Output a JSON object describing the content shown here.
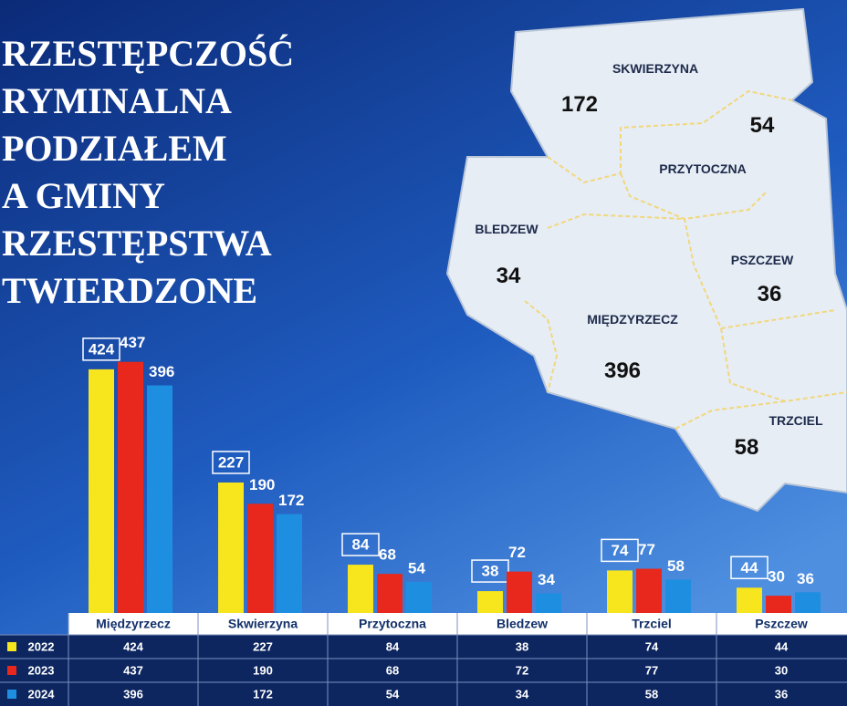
{
  "chart_data": {
    "type": "bar",
    "title_lines": [
      "RZESTĘPCZOŚĆ",
      "RYMINALNA",
      "PODZIAŁEM",
      "A GMINY",
      "RZESTĘPSTWA",
      "TWIERDZONE"
    ],
    "categories": [
      "Międzyrzecz",
      "Skwierzyna",
      "Przytoczna",
      "Bledzew",
      "Trzciel",
      "Pszczew"
    ],
    "series": [
      {
        "name": "2022",
        "color": "#f7e51e",
        "values": [
          424,
          227,
          84,
          38,
          74,
          44
        ]
      },
      {
        "name": "2023",
        "color": "#e8281c",
        "values": [
          437,
          190,
          68,
          72,
          77,
          30
        ]
      },
      {
        "name": "2024",
        "color": "#1e8fe0",
        "values": [
          396,
          172,
          54,
          34,
          58,
          36
        ]
      }
    ],
    "map_regions": [
      {
        "name": "SKWIERZYNA",
        "value": 172
      },
      {
        "name": "PRZYTOCZNA",
        "value": 54
      },
      {
        "name": "BLEDZEW",
        "value": 34
      },
      {
        "name": "PSZCZEW",
        "value": 36
      },
      {
        "name": "MIĘDZYRZECZ",
        "value": 396
      },
      {
        "name": "TRZCIEL",
        "value": 58
      }
    ]
  }
}
